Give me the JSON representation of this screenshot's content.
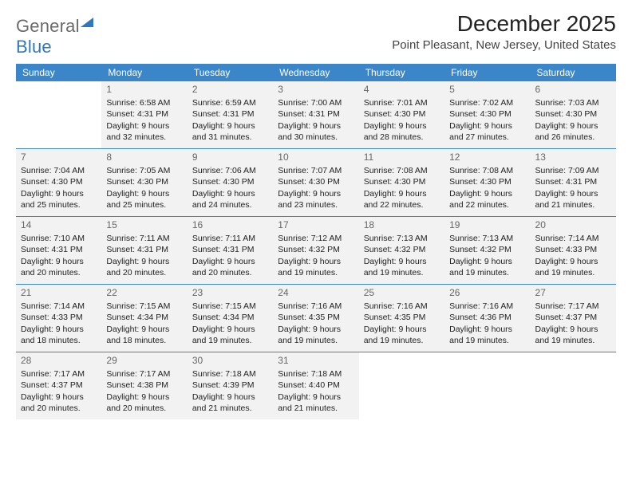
{
  "brand": {
    "part1": "General",
    "part2": "Blue"
  },
  "title": "December 2025",
  "location": "Point Pleasant, New Jersey, United States",
  "colors": {
    "header_bg": "#3b86c8",
    "header_text": "#ffffff",
    "rule": "#3b86c8",
    "shaded_bg": "#f2f2f2",
    "logo_gray": "#6b6b6b",
    "logo_blue": "#2f78bd"
  },
  "day_headers": [
    "Sunday",
    "Monday",
    "Tuesday",
    "Wednesday",
    "Thursday",
    "Friday",
    "Saturday"
  ],
  "weeks": [
    [
      {
        "day": "",
        "sunrise": "",
        "sunset": "",
        "daylight": ""
      },
      {
        "day": "1",
        "sunrise": "6:58 AM",
        "sunset": "4:31 PM",
        "daylight": "9 hours and 32 minutes."
      },
      {
        "day": "2",
        "sunrise": "6:59 AM",
        "sunset": "4:31 PM",
        "daylight": "9 hours and 31 minutes."
      },
      {
        "day": "3",
        "sunrise": "7:00 AM",
        "sunset": "4:31 PM",
        "daylight": "9 hours and 30 minutes."
      },
      {
        "day": "4",
        "sunrise": "7:01 AM",
        "sunset": "4:30 PM",
        "daylight": "9 hours and 28 minutes."
      },
      {
        "day": "5",
        "sunrise": "7:02 AM",
        "sunset": "4:30 PM",
        "daylight": "9 hours and 27 minutes."
      },
      {
        "day": "6",
        "sunrise": "7:03 AM",
        "sunset": "4:30 PM",
        "daylight": "9 hours and 26 minutes."
      }
    ],
    [
      {
        "day": "7",
        "sunrise": "7:04 AM",
        "sunset": "4:30 PM",
        "daylight": "9 hours and 25 minutes."
      },
      {
        "day": "8",
        "sunrise": "7:05 AM",
        "sunset": "4:30 PM",
        "daylight": "9 hours and 25 minutes."
      },
      {
        "day": "9",
        "sunrise": "7:06 AM",
        "sunset": "4:30 PM",
        "daylight": "9 hours and 24 minutes."
      },
      {
        "day": "10",
        "sunrise": "7:07 AM",
        "sunset": "4:30 PM",
        "daylight": "9 hours and 23 minutes."
      },
      {
        "day": "11",
        "sunrise": "7:08 AM",
        "sunset": "4:30 PM",
        "daylight": "9 hours and 22 minutes."
      },
      {
        "day": "12",
        "sunrise": "7:08 AM",
        "sunset": "4:30 PM",
        "daylight": "9 hours and 22 minutes."
      },
      {
        "day": "13",
        "sunrise": "7:09 AM",
        "sunset": "4:31 PM",
        "daylight": "9 hours and 21 minutes."
      }
    ],
    [
      {
        "day": "14",
        "sunrise": "7:10 AM",
        "sunset": "4:31 PM",
        "daylight": "9 hours and 20 minutes."
      },
      {
        "day": "15",
        "sunrise": "7:11 AM",
        "sunset": "4:31 PM",
        "daylight": "9 hours and 20 minutes."
      },
      {
        "day": "16",
        "sunrise": "7:11 AM",
        "sunset": "4:31 PM",
        "daylight": "9 hours and 20 minutes."
      },
      {
        "day": "17",
        "sunrise": "7:12 AM",
        "sunset": "4:32 PM",
        "daylight": "9 hours and 19 minutes."
      },
      {
        "day": "18",
        "sunrise": "7:13 AM",
        "sunset": "4:32 PM",
        "daylight": "9 hours and 19 minutes."
      },
      {
        "day": "19",
        "sunrise": "7:13 AM",
        "sunset": "4:32 PM",
        "daylight": "9 hours and 19 minutes."
      },
      {
        "day": "20",
        "sunrise": "7:14 AM",
        "sunset": "4:33 PM",
        "daylight": "9 hours and 19 minutes."
      }
    ],
    [
      {
        "day": "21",
        "sunrise": "7:14 AM",
        "sunset": "4:33 PM",
        "daylight": "9 hours and 18 minutes."
      },
      {
        "day": "22",
        "sunrise": "7:15 AM",
        "sunset": "4:34 PM",
        "daylight": "9 hours and 18 minutes."
      },
      {
        "day": "23",
        "sunrise": "7:15 AM",
        "sunset": "4:34 PM",
        "daylight": "9 hours and 19 minutes."
      },
      {
        "day": "24",
        "sunrise": "7:16 AM",
        "sunset": "4:35 PM",
        "daylight": "9 hours and 19 minutes."
      },
      {
        "day": "25",
        "sunrise": "7:16 AM",
        "sunset": "4:35 PM",
        "daylight": "9 hours and 19 minutes."
      },
      {
        "day": "26",
        "sunrise": "7:16 AM",
        "sunset": "4:36 PM",
        "daylight": "9 hours and 19 minutes."
      },
      {
        "day": "27",
        "sunrise": "7:17 AM",
        "sunset": "4:37 PM",
        "daylight": "9 hours and 19 minutes."
      }
    ],
    [
      {
        "day": "28",
        "sunrise": "7:17 AM",
        "sunset": "4:37 PM",
        "daylight": "9 hours and 20 minutes."
      },
      {
        "day": "29",
        "sunrise": "7:17 AM",
        "sunset": "4:38 PM",
        "daylight": "9 hours and 20 minutes."
      },
      {
        "day": "30",
        "sunrise": "7:18 AM",
        "sunset": "4:39 PM",
        "daylight": "9 hours and 21 minutes."
      },
      {
        "day": "31",
        "sunrise": "7:18 AM",
        "sunset": "4:40 PM",
        "daylight": "9 hours and 21 minutes."
      },
      {
        "day": "",
        "sunrise": "",
        "sunset": "",
        "daylight": ""
      },
      {
        "day": "",
        "sunrise": "",
        "sunset": "",
        "daylight": ""
      },
      {
        "day": "",
        "sunrise": "",
        "sunset": "",
        "daylight": ""
      }
    ]
  ],
  "labels": {
    "sunrise": "Sunrise:",
    "sunset": "Sunset:",
    "daylight": "Daylight:"
  }
}
